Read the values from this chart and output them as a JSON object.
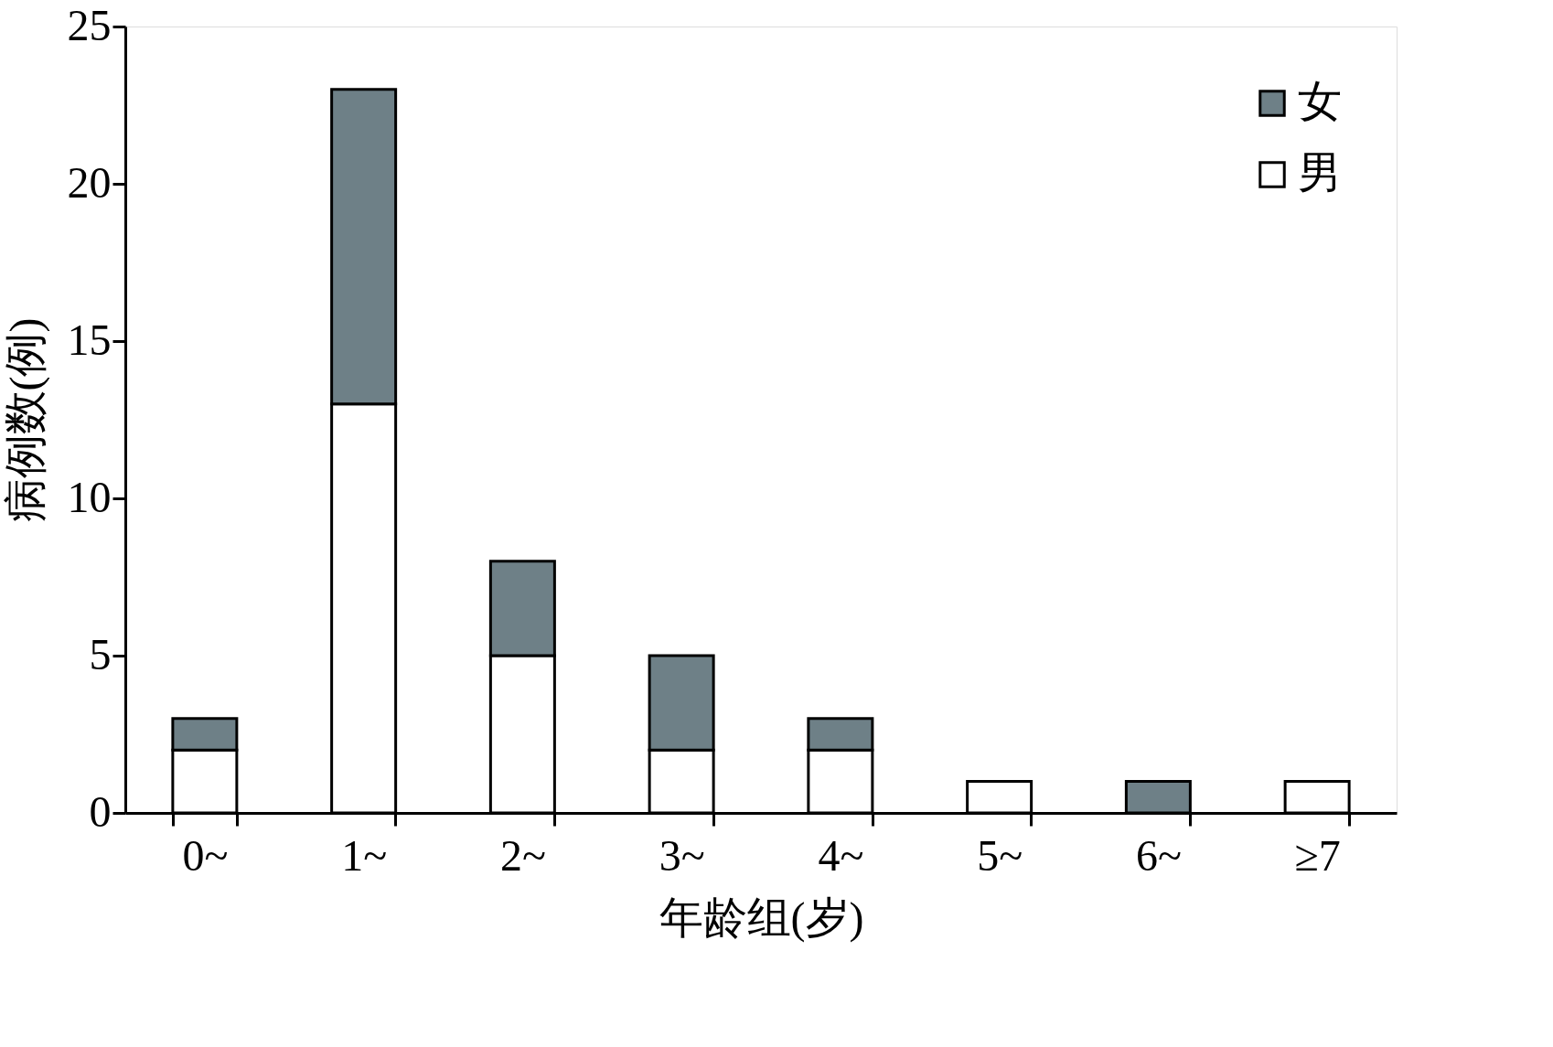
{
  "chart_data": {
    "type": "bar",
    "stacked": true,
    "xlabel": "年龄组(岁)",
    "ylabel": "病例数(例)",
    "categories": [
      "0~",
      "1~",
      "2~",
      "3~",
      "4~",
      "5~",
      "6~",
      "≥7"
    ],
    "ylim": [
      0,
      25
    ],
    "yticks": [
      0,
      5,
      10,
      15,
      20,
      25
    ],
    "grid": false,
    "legend": "top right",
    "series": [
      {
        "name": "男",
        "color": "#ffffff",
        "values": [
          2,
          13,
          5,
          2,
          2,
          1,
          null,
          1
        ]
      },
      {
        "name": "女",
        "color": "#6e8087",
        "values": [
          1,
          10,
          3,
          3,
          1,
          null,
          1,
          null
        ]
      }
    ]
  }
}
